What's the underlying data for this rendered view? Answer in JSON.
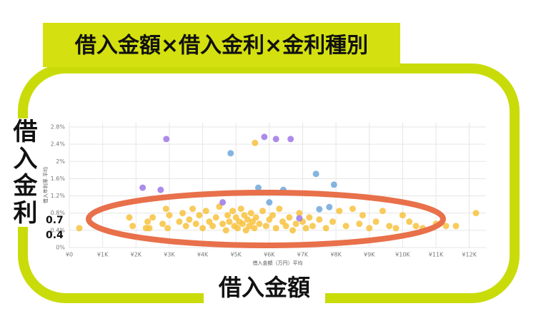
{
  "chart_data": {
    "type": "scatter",
    "title": "借入金額×借入金利×金利種別",
    "annotations": [
      "借入金利",
      "0.7",
      "0.4",
      "借入金額"
    ],
    "xlabel": "借入金額（万円）平均",
    "ylabel": "借入年利率 平均",
    "xlim": [
      0,
      12500
    ],
    "ylim": [
      0,
      2.9
    ],
    "grid": true,
    "xticks": [
      {
        "value": 0,
        "label": "¥0"
      },
      {
        "value": 1000,
        "label": "¥1K"
      },
      {
        "value": 2000,
        "label": "¥2K"
      },
      {
        "value": 3000,
        "label": "¥3K"
      },
      {
        "value": 4000,
        "label": "¥4K"
      },
      {
        "value": 5000,
        "label": "¥5K"
      },
      {
        "value": 6000,
        "label": "¥6K"
      },
      {
        "value": 7000,
        "label": "¥7K"
      },
      {
        "value": 8000,
        "label": "¥8K"
      },
      {
        "value": 9000,
        "label": "¥9K"
      },
      {
        "value": 10000,
        "label": "¥10K"
      },
      {
        "value": 11000,
        "label": "¥11K"
      },
      {
        "value": 12000,
        "label": "¥12K"
      }
    ],
    "yticks": [
      {
        "value": 0,
        "label": "0%"
      },
      {
        "value": 0.4,
        "label": "0.4%"
      },
      {
        "value": 0.8,
        "label": "0.8%"
      },
      {
        "value": 1.2,
        "label": "1.2%"
      },
      {
        "value": 1.6,
        "label": "1.6%"
      },
      {
        "value": 2,
        "label": "2%"
      },
      {
        "value": 2.4,
        "label": "2.4%"
      },
      {
        "value": 2.8,
        "label": "2.8%"
      }
    ],
    "series": [
      {
        "color": "#f7c23e",
        "x": [
          300,
          1800,
          1900,
          2300,
          2350,
          2400,
          2500,
          2800,
          2900,
          2950,
          3000,
          3300,
          3400,
          3500,
          3600,
          3700,
          3800,
          3900,
          4000,
          4100,
          4200,
          4300,
          4400,
          4500,
          4600,
          4700,
          4750,
          4800,
          4900,
          4950,
          5000,
          5050,
          5100,
          5150,
          5200,
          5250,
          5300,
          5350,
          5400,
          5450,
          5500,
          5550,
          5600,
          5700,
          5800,
          5900,
          6000,
          6100,
          6200,
          6300,
          6400,
          6500,
          6600,
          6700,
          6800,
          6900,
          7000,
          7100,
          7200,
          7300,
          7500,
          7700,
          7900,
          8100,
          8300,
          8500,
          8700,
          8800,
          9000,
          9200,
          9400,
          9600,
          9800,
          10000,
          10200,
          10400,
          10600,
          11000,
          11300,
          11600,
          12200,
          5570,
          7090
        ],
        "values": [
          0.45,
          0.7,
          0.5,
          0.45,
          0.6,
          0.45,
          0.7,
          0.55,
          0.9,
          0.45,
          0.75,
          0.6,
          0.8,
          0.5,
          0.65,
          0.9,
          0.55,
          0.75,
          0.45,
          0.85,
          0.6,
          0.5,
          0.7,
          0.95,
          0.55,
          0.4,
          0.75,
          0.6,
          0.85,
          0.5,
          0.7,
          0.45,
          0.6,
          0.9,
          0.55,
          0.75,
          0.4,
          0.65,
          0.5,
          0.8,
          0.6,
          0.45,
          0.7,
          0.55,
          0.85,
          0.5,
          0.65,
          0.75,
          0.45,
          0.9,
          0.6,
          0.5,
          0.7,
          0.4,
          0.55,
          0.8,
          0.6,
          0.45,
          0.7,
          0.5,
          0.65,
          0.45,
          0.6,
          0.85,
          0.5,
          0.9,
          0.55,
          0.75,
          0.45,
          0.6,
          0.85,
          0.5,
          0.45,
          0.75,
          0.6,
          0.5,
          0.45,
          0.55,
          0.5,
          0.5,
          0.8,
          2.43,
          1.26
        ]
      },
      {
        "color": "#9d78e6",
        "x": [
          2910,
          5850,
          6200,
          6640,
          2200,
          2740,
          6900,
          4600
        ],
        "values": [
          2.52,
          2.57,
          2.52,
          2.52,
          1.39,
          1.34,
          0.68,
          1.05
        ]
      },
      {
        "color": "#6fa8dc",
        "x": [
          4840,
          7400,
          7940,
          5670,
          6420,
          7500,
          7800,
          6000
        ],
        "values": [
          2.19,
          1.71,
          1.46,
          1.39,
          1.34,
          0.89,
          0.94,
          1.05
        ]
      }
    ]
  }
}
